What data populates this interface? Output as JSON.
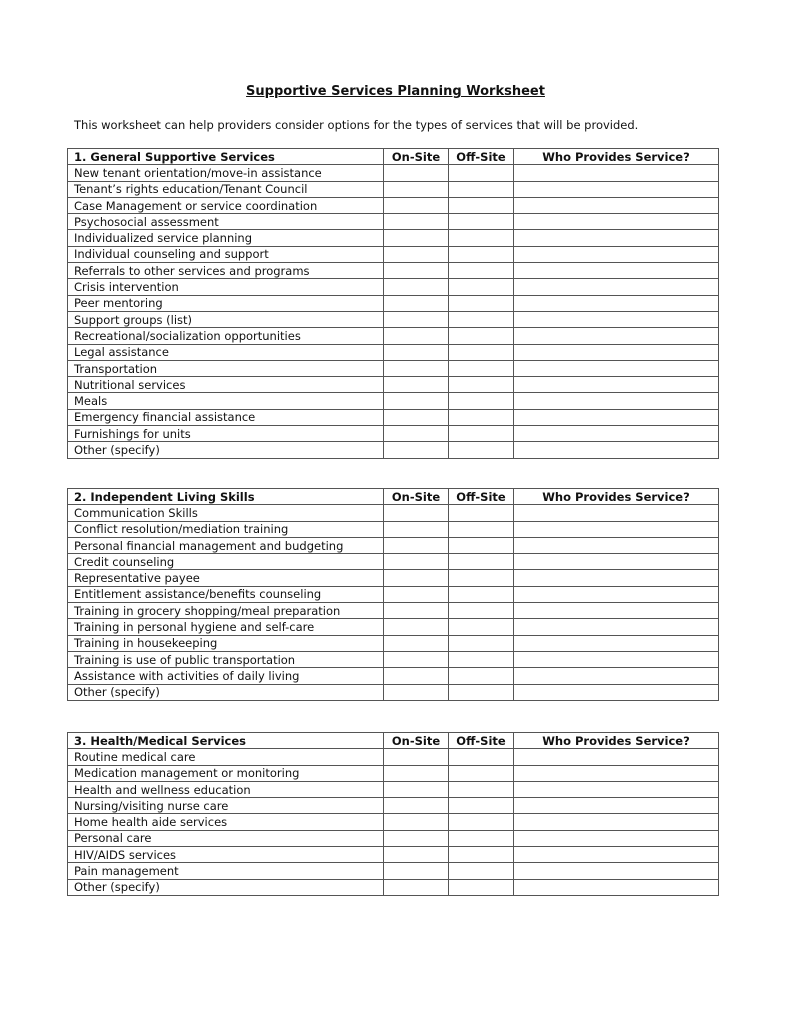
{
  "title": "Supportive Services Planning Worksheet",
  "intro": "This worksheet can help providers consider options for the types of services that will be provided.",
  "columns": {
    "onsite": "On-Site",
    "offsite": "Off-Site",
    "who": "Who Provides Service?"
  },
  "sections": [
    {
      "heading": "1.  General Supportive Services",
      "items": [
        "New tenant orientation/move-in assistance",
        "Tenant’s rights education/Tenant Council",
        "Case Management or service coordination",
        "Psychosocial assessment",
        "Individualized service planning",
        "Individual counseling and support",
        "Referrals to other services and programs",
        "Crisis intervention",
        "Peer mentoring",
        "Support groups (list)",
        "Recreational/socialization opportunities",
        "Legal assistance",
        "Transportation",
        "Nutritional services",
        "Meals",
        "Emergency financial assistance",
        "Furnishings for units",
        "Other (specify)"
      ]
    },
    {
      "heading": "2.  Independent Living Skills",
      "items": [
        "Communication Skills",
        "Conflict resolution/mediation training",
        "Personal financial management and budgeting",
        "Credit counseling",
        "Representative payee",
        "Entitlement assistance/benefits counseling",
        "Training in grocery shopping/meal preparation",
        "Training in personal hygiene and self-care",
        "Training in housekeeping",
        "Training is use of public transportation",
        "Assistance with activities of daily living",
        "Other (specify)"
      ]
    },
    {
      "heading": "3.  Health/Medical Services",
      "items": [
        "Routine medical care",
        "Medication management or monitoring",
        "Health and wellness education",
        "Nursing/visiting nurse care",
        "Home health aide services",
        "Personal care",
        "HIV/AIDS services",
        "Pain management",
        "Other (specify)"
      ]
    }
  ]
}
